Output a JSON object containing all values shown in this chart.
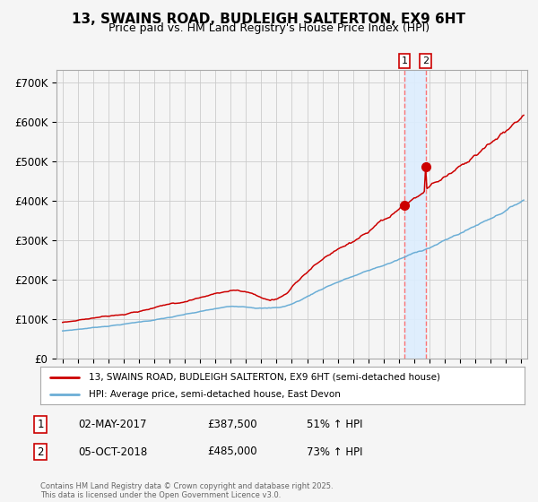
{
  "title": "13, SWAINS ROAD, BUDLEIGH SALTERTON, EX9 6HT",
  "subtitle": "Price paid vs. HM Land Registry's House Price Index (HPI)",
  "legend_line1": "13, SWAINS ROAD, BUDLEIGH SALTERTON, EX9 6HT (semi-detached house)",
  "legend_line2": "HPI: Average price, semi-detached house, East Devon",
  "transaction1_date": "02-MAY-2017",
  "transaction1_price": 387500,
  "transaction1_hpi": "51% ↑ HPI",
  "transaction1_year": 2017.37,
  "transaction2_date": "05-OCT-2018",
  "transaction2_price": 485000,
  "transaction2_hpi": "73% ↑ HPI",
  "transaction2_year": 2018.75,
  "footer": "Contains HM Land Registry data © Crown copyright and database right 2025.\nThis data is licensed under the Open Government Licence v3.0.",
  "property_color": "#cc0000",
  "hpi_color": "#6baed6",
  "background_color": "#f5f5f5",
  "grid_color": "#cccccc",
  "highlight_color": "#ddeeff",
  "dashed_line_color": "#ff6666",
  "ylim": [
    0,
    730000
  ],
  "yticks": [
    0,
    100000,
    200000,
    300000,
    400000,
    500000,
    600000,
    700000
  ],
  "ytick_labels": [
    "£0",
    "£100K",
    "£200K",
    "£300K",
    "£400K",
    "£500K",
    "£600K",
    "£700K"
  ]
}
